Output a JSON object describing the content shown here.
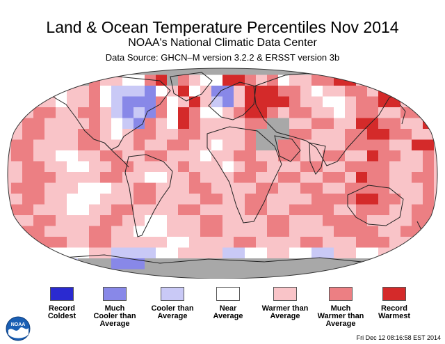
{
  "header": {
    "title": "Land & Ocean Temperature Percentiles Nov 2014",
    "subtitle": "NOAA's National Climatic Data Center",
    "source": "Data Source: GHCN–M version 3.2.2 & ERSST version 3b"
  },
  "colors": {
    "record_coldest": "#2a2ad0",
    "much_cooler": "#8888e8",
    "cooler": "#c9c9f6",
    "near": "#ffffff",
    "warmer": "#f9c4c8",
    "much_warmer": "#ec7f83",
    "record_warmest": "#d42a2a",
    "no_data": "#a8a8a8"
  },
  "legend": [
    {
      "label": "Record\nColdest",
      "color": "#2a2ad0"
    },
    {
      "label": "Much\nCooler than\nAverage",
      "color": "#8888e8"
    },
    {
      "label": "Cooler than\nAverage",
      "color": "#c9c9f6"
    },
    {
      "label": "Near\nAverage",
      "color": "#ffffff"
    },
    {
      "label": "Warmer than\nAverage",
      "color": "#f9c4c8"
    },
    {
      "label": "Much\nWarmer than\nAverage",
      "color": "#ec7f83"
    },
    {
      "label": "Record\nWarmest",
      "color": "#d42a2a"
    }
  ],
  "logo": {
    "icon": "noaa-logo-icon",
    "text": "NOAA"
  },
  "footer": {
    "timestamp": "Fri Dec 12 08:16:58 EST 2014"
  }
}
